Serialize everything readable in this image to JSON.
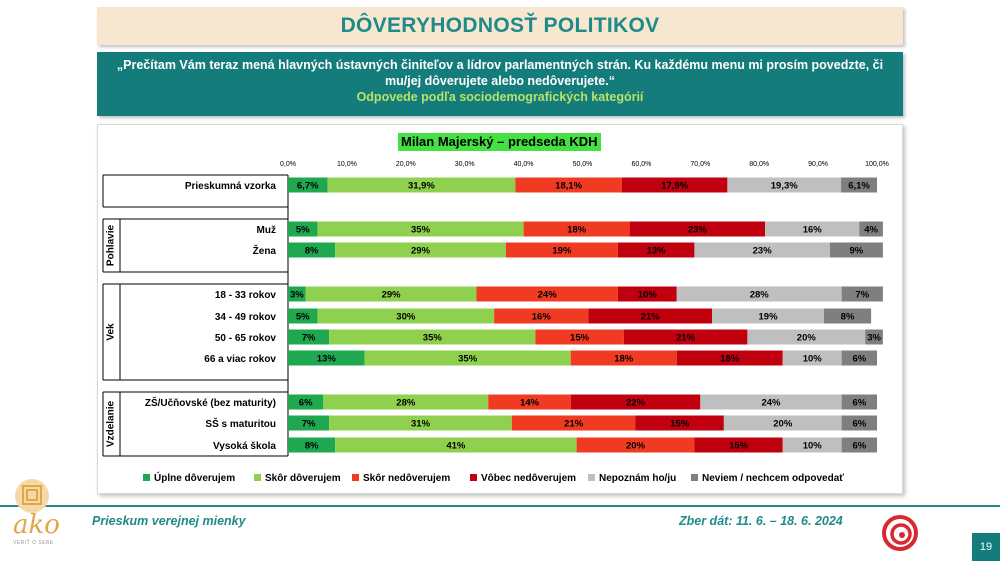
{
  "title": "DÔVERYHODNOSŤ POLITIKOV",
  "question": "„Prečítam Vám teraz mená hlavných ústavných činiteľov a lídrov parlamentných strán. Ku každému menu mi prosím povedzte, či mu/jej dôverujete alebo nedôverujete.“",
  "subtitle": "Odpovede podľa sociodemografických kategórií",
  "footer": {
    "left": "Prieskum verejnej mienky",
    "right": "Zber dát: 11. 6. – 18. 6. 2024",
    "page": "19"
  },
  "logo": {
    "text": "ako",
    "sub": "VERIŤ O SEBE"
  },
  "colors": {
    "uplne": "#1fa84f",
    "skor_dov": "#8fd14f",
    "skor_nedov": "#f13a22",
    "vobec": "#c0000f",
    "nepoznam": "#bfbfbf",
    "neviem": "#7f7f7f",
    "accent": "#1f8a8a"
  },
  "chart_data": {
    "type": "bar",
    "orientation": "horizontal",
    "stacked": true,
    "title": "Milan Majerský – predseda KDH",
    "x_ticks": [
      "0,0%",
      "10,0%",
      "20,0%",
      "30,0%",
      "40,0%",
      "50,0%",
      "60,0%",
      "70,0%",
      "80,0%",
      "90,0%",
      "100,0%"
    ],
    "xlim": [
      0,
      100
    ],
    "series": [
      {
        "name": "Úplne dôverujem"
      },
      {
        "name": "Skôr dôverujem"
      },
      {
        "name": "Skôr nedôverujem"
      },
      {
        "name": "Vôbec nedôverujem"
      },
      {
        "name": "Nepoznám ho/ju"
      },
      {
        "name": "Neviem / nechcem odpovedať"
      }
    ],
    "groups": [
      {
        "label": "",
        "rows": [
          {
            "label": "Prieskumná vzorka",
            "values": [
              6.7,
              31.9,
              18.1,
              17.9,
              19.3,
              6.1
            ],
            "labels": [
              "6,7%",
              "31,9%",
              "18,1%",
              "17,9%",
              "19,3%",
              "6,1%"
            ]
          }
        ]
      },
      {
        "label": "Pohlavie",
        "rows": [
          {
            "label": "Muž",
            "values": [
              5,
              35,
              18,
              23,
              16,
              4
            ],
            "labels": [
              "5%",
              "35%",
              "18%",
              "23%",
              "16%",
              "4%"
            ]
          },
          {
            "label": "Žena",
            "values": [
              8,
              29,
              19,
              13,
              23,
              9
            ],
            "labels": [
              "8%",
              "29%",
              "19%",
              "13%",
              "23%",
              "9%"
            ]
          }
        ]
      },
      {
        "label": "Vek",
        "rows": [
          {
            "label": "18 - 33 rokov",
            "values": [
              3,
              29,
              24,
              10,
              28,
              7
            ],
            "labels": [
              "3%",
              "29%",
              "24%",
              "10%",
              "28%",
              "7%"
            ]
          },
          {
            "label": "34 - 49 rokov",
            "values": [
              5,
              30,
              16,
              21,
              19,
              8
            ],
            "labels": [
              "5%",
              "30%",
              "16%",
              "21%",
              "19%",
              "8%"
            ]
          },
          {
            "label": "50 - 65 rokov",
            "values": [
              7,
              35,
              15,
              21,
              20,
              3
            ],
            "labels": [
              "7%",
              "35%",
              "15%",
              "21%",
              "20%",
              "3%"
            ]
          },
          {
            "label": "66 a viac rokov",
            "values": [
              13,
              35,
              18,
              18,
              10,
              6
            ],
            "labels": [
              "13%",
              "35%",
              "18%",
              "18%",
              "10%",
              "6%"
            ]
          }
        ]
      },
      {
        "label": "Vzdelanie",
        "rows": [
          {
            "label": "ZŠ/Učňovské (bez maturity)",
            "values": [
              6,
              28,
              14,
              22,
              24,
              6
            ],
            "labels": [
              "6%",
              "28%",
              "14%",
              "22%",
              "24%",
              "6%"
            ]
          },
          {
            "label": "SŠ s maturitou",
            "values": [
              7,
              31,
              21,
              15,
              20,
              6
            ],
            "labels": [
              "7%",
              "31%",
              "21%",
              "15%",
              "20%",
              "6%"
            ]
          },
          {
            "label": "Vysoká škola",
            "values": [
              8,
              41,
              20,
              15,
              10,
              6
            ],
            "labels": [
              "8%",
              "41%",
              "20%",
              "15%",
              "10%",
              "6%"
            ]
          }
        ]
      }
    ],
    "legend_position": "bottom",
    "grid": false
  }
}
